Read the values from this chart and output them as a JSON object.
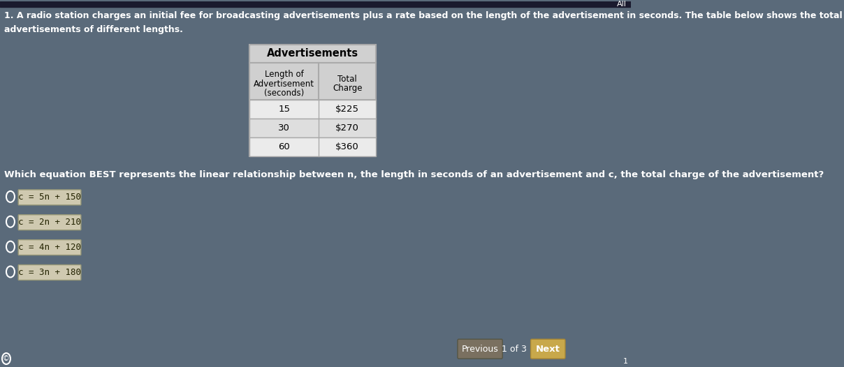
{
  "background_color": "#5a6a7a",
  "top_bar_color": "#1a1a2e",
  "question_line1": "1. A radio station charges an initial fee for broadcasting advertisements plus a rate based on the length of the advertisement in seconds. The table below shows the total char",
  "question_line2": "advertisements of different lengths.",
  "table_title": "Advertisements",
  "col1_header": [
    "Length of",
    "Advertisement",
    "(seconds)"
  ],
  "col2_header": [
    "Total",
    "Charge"
  ],
  "table_data": [
    [
      "15",
      "$225"
    ],
    [
      "30",
      "$270"
    ],
    [
      "60",
      "$360"
    ]
  ],
  "question2": "Which equation BEST represents the linear relationship between n, the length in seconds of an advertisement and c, the total charge of the advertisement?",
  "choices": [
    "c = 5n + 150",
    "c = 2n + 210",
    "c = 4n + 120",
    "c = 3n + 180"
  ],
  "nav_prev": "Previous",
  "nav_page": "1 of 3",
  "nav_next": "Next",
  "top_right_text": "All"
}
